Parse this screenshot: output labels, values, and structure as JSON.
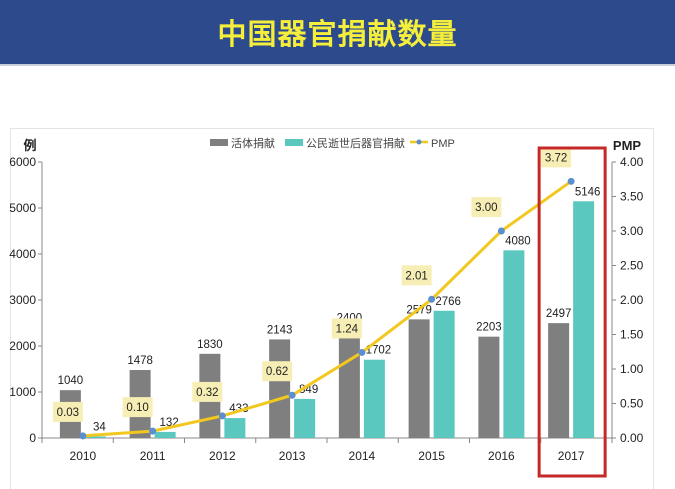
{
  "header": {
    "title": "中国器官捐献数量"
  },
  "chart_data": {
    "type": "bar",
    "title": "中国器官捐献数量",
    "categories": [
      "2010",
      "2011",
      "2012",
      "2013",
      "2014",
      "2015",
      "2016",
      "2017"
    ],
    "series": [
      {
        "name": "活体捐献",
        "type": "bar",
        "axis": "left",
        "color": "#7f7f7f",
        "values": [
          1040,
          1478,
          1830,
          2143,
          2400,
          2579,
          2203,
          2497
        ]
      },
      {
        "name": "公民逝世后器官捐献",
        "type": "bar",
        "axis": "left",
        "color": "#5bc8c0",
        "values": [
          34,
          132,
          433,
          849,
          1702,
          2766,
          4080,
          5146
        ]
      },
      {
        "name": "PMP",
        "type": "line",
        "axis": "right",
        "color": "#f2c81e",
        "marker_color": "#5b8fd0",
        "values": [
          0.03,
          0.1,
          0.32,
          0.62,
          1.24,
          2.01,
          3.0,
          3.72
        ]
      }
    ],
    "ylabel": "例",
    "ylabel_right": "PMP",
    "ylim": [
      0,
      6000
    ],
    "ylim_right": [
      0,
      4.0
    ],
    "yticks": [
      "0",
      "1000",
      "2000",
      "3000",
      "4000",
      "5000",
      "6000"
    ],
    "yticks_right": [
      "0.00",
      "0.50",
      "1.00",
      "1.50",
      "2.00",
      "2.50",
      "3.00",
      "3.50",
      "4.00"
    ],
    "legend_position": "top-center",
    "highlight_category": "2017",
    "highlight_color": "#c62828",
    "grid": false
  }
}
